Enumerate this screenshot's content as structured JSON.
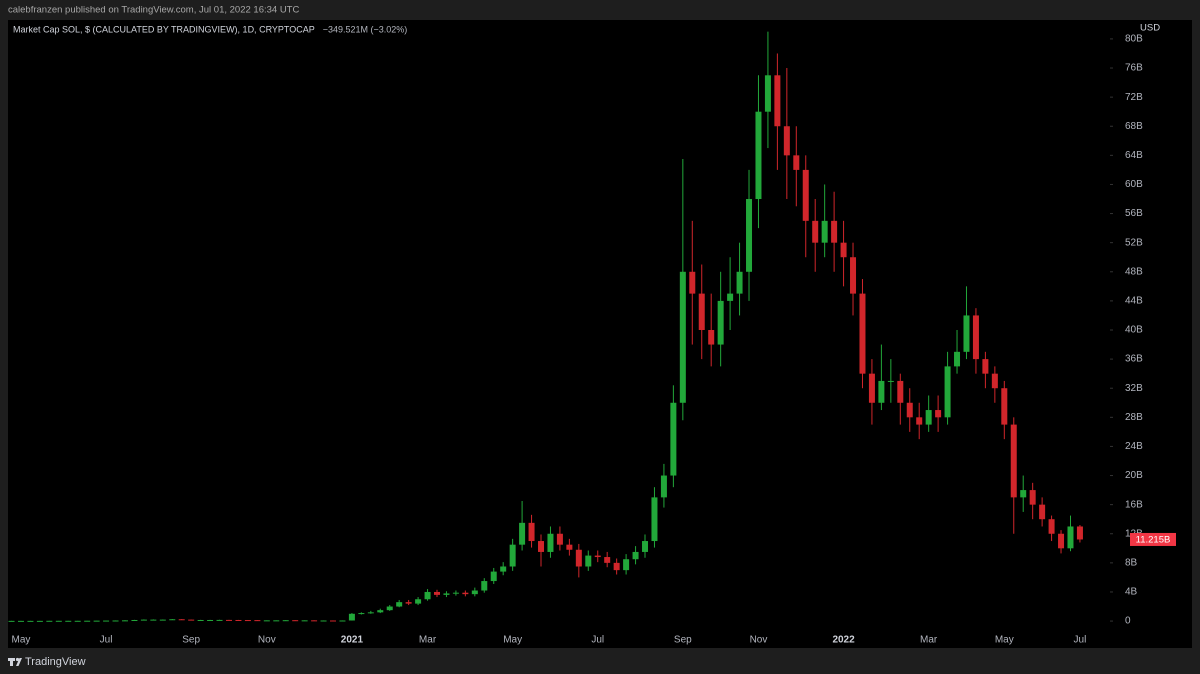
{
  "header": {
    "publisher": "calebfranzen published on TradingView.com, Jul 01, 2022 16:34 UTC"
  },
  "footer": {
    "brand": "TradingView"
  },
  "chart_data": {
    "type": "candlestick",
    "title": "Market Cap SOL, $ (CALCULATED BY TRADINGVIEW), 1D, CRYPTOCAP",
    "change": "−349.521M (−3.02%)",
    "currency": "USD",
    "last_label": "11.215B",
    "up_color": "#22a83a",
    "down_color": "#d1262b",
    "label_color": "#f23645",
    "categories": [
      null,
      "May",
      null,
      null,
      null,
      null,
      null,
      null,
      null,
      null,
      "Jul",
      null,
      null,
      null,
      null,
      null,
      null,
      null,
      null,
      "Sep",
      null,
      null,
      null,
      null,
      null,
      null,
      null,
      "Nov",
      null,
      null,
      null,
      null,
      null,
      null,
      null,
      null,
      "2021",
      null,
      null,
      null,
      null,
      null,
      null,
      null,
      "Mar",
      null,
      null,
      null,
      null,
      null,
      null,
      null,
      null,
      "May",
      null,
      null,
      null,
      null,
      null,
      null,
      null,
      null,
      "Jul",
      null,
      null,
      null,
      null,
      null,
      null,
      null,
      null,
      "Sep",
      null,
      null,
      null,
      null,
      null,
      null,
      null,
      "Nov",
      null,
      null,
      null,
      null,
      null,
      null,
      null,
      null,
      "2022",
      null,
      null,
      null,
      null,
      null,
      null,
      null,
      null,
      "Mar",
      null,
      null,
      null,
      null,
      null,
      null,
      null,
      "May",
      null,
      null,
      null,
      null,
      null,
      null,
      null,
      "Jul"
    ],
    "open": [
      0.03,
      0.03,
      0.03,
      0.03,
      0.03,
      0.04,
      0.04,
      0.04,
      0.04,
      0.05,
      0.06,
      0.07,
      0.08,
      0.1,
      0.15,
      0.2,
      0.2,
      0.2,
      0.25,
      0.2,
      0.15,
      0.15,
      0.15,
      0.16,
      0.15,
      0.14,
      0.13,
      0.1,
      0.1,
      0.1,
      0.12,
      0.1,
      0.1,
      0.08,
      0.08,
      0.07,
      0.08,
      1.0,
      1.1,
      1.2,
      1.5,
      2.0,
      2.6,
      2.4,
      3.0,
      4.0,
      3.6,
      3.8,
      3.9,
      3.7,
      4.2,
      5.5,
      6.8,
      7.5,
      10.5,
      13.5,
      11,
      9.5,
      12,
      10.5,
      9.8,
      7.5,
      9.0,
      8.8,
      8.0,
      7.0,
      8.5,
      9.5,
      11,
      17,
      20,
      30,
      48,
      45,
      40,
      38,
      44,
      45,
      48,
      58,
      70,
      75,
      68,
      64,
      62,
      55,
      52,
      55,
      52,
      50,
      45,
      34,
      30,
      33,
      33,
      30,
      28,
      27,
      29,
      28,
      35,
      37,
      42,
      36,
      34,
      32,
      27,
      17,
      18,
      16,
      14,
      12,
      10,
      13
    ],
    "high": [
      0.04,
      0.04,
      0.04,
      0.04,
      0.05,
      0.05,
      0.05,
      0.05,
      0.06,
      0.07,
      0.08,
      0.09,
      0.12,
      0.17,
      0.23,
      0.24,
      0.23,
      0.28,
      0.27,
      0.21,
      0.17,
      0.17,
      0.18,
      0.17,
      0.16,
      0.15,
      0.14,
      0.11,
      0.11,
      0.13,
      0.13,
      0.11,
      0.11,
      0.09,
      0.09,
      0.09,
      1.1,
      1.2,
      1.4,
      1.7,
      2.2,
      2.9,
      2.9,
      3.3,
      4.4,
      4.3,
      4.1,
      4.2,
      4.2,
      4.6,
      5.9,
      7.3,
      8.1,
      11.3,
      16.5,
      14.6,
      11.9,
      13.0,
      13.0,
      11.3,
      10.6,
      9.7,
      9.7,
      9.5,
      8.6,
      9.2,
      10.3,
      11.9,
      18.4,
      21.6,
      32.4,
      63.5,
      55,
      49,
      45,
      48,
      50,
      52,
      62,
      75,
      81,
      78,
      76,
      68,
      64,
      58,
      60,
      59,
      55,
      52,
      47,
      36,
      38,
      36,
      34,
      32,
      30,
      31,
      31,
      37,
      40,
      46,
      43,
      37,
      35,
      33,
      28,
      20,
      19,
      17,
      14.5,
      12.5,
      14.5,
      13.2
    ],
    "low": [
      0.02,
      0.02,
      0.02,
      0.02,
      0.03,
      0.03,
      0.03,
      0.03,
      0.04,
      0.05,
      0.05,
      0.06,
      0.07,
      0.09,
      0.14,
      0.18,
      0.18,
      0.19,
      0.18,
      0.13,
      0.13,
      0.13,
      0.14,
      0.13,
      0.12,
      0.12,
      0.09,
      0.09,
      0.09,
      0.09,
      0.09,
      0.09,
      0.07,
      0.07,
      0.06,
      0.06,
      0.07,
      0.9,
      1.0,
      1.1,
      1.4,
      1.9,
      2.2,
      2.2,
      2.8,
      3.3,
      3.3,
      3.5,
      3.4,
      3.4,
      3.9,
      5.1,
      6.3,
      6.9,
      9.7,
      10.1,
      7.5,
      8.7,
      9.7,
      9.0,
      6.0,
      6.9,
      8.1,
      7.4,
      6.4,
      6.4,
      7.8,
      8.7,
      10.1,
      15.6,
      18.4,
      27.6,
      38,
      36,
      35,
      35,
      40,
      42,
      44,
      54,
      65,
      62,
      58,
      57,
      50,
      48,
      50,
      48,
      46,
      42,
      32,
      27,
      29,
      30,
      27,
      26,
      25,
      26,
      26,
      27,
      34,
      36,
      34,
      32,
      30,
      25,
      12,
      15,
      14,
      13,
      11,
      9.3,
      9.6,
      10.8
    ],
    "close": [
      0.03,
      0.03,
      0.03,
      0.03,
      0.04,
      0.04,
      0.04,
      0.04,
      0.05,
      0.06,
      0.07,
      0.08,
      0.1,
      0.15,
      0.2,
      0.2,
      0.2,
      0.25,
      0.2,
      0.15,
      0.15,
      0.15,
      0.16,
      0.15,
      0.14,
      0.13,
      0.1,
      0.1,
      0.1,
      0.12,
      0.1,
      0.1,
      0.08,
      0.08,
      0.07,
      0.08,
      1.0,
      1.1,
      1.2,
      1.5,
      2.0,
      2.6,
      2.4,
      3.0,
      4.0,
      3.6,
      3.8,
      3.9,
      3.7,
      4.2,
      5.5,
      6.8,
      7.5,
      10.5,
      13.5,
      11,
      9.5,
      12,
      10.5,
      9.8,
      7.5,
      9.0,
      8.8,
      8.0,
      7.0,
      8.5,
      9.5,
      11,
      17,
      20,
      30,
      48,
      45,
      40,
      38,
      44,
      45,
      48,
      58,
      70,
      75,
      68,
      64,
      62,
      55,
      52,
      55,
      52,
      50,
      45,
      34,
      30,
      33,
      33,
      30,
      28,
      27,
      29,
      28,
      35,
      37,
      42,
      36,
      34,
      32,
      27,
      17,
      18,
      16,
      14,
      12,
      10,
      13,
      11.215
    ],
    "ylim": [
      -3.7,
      82.6
    ],
    "yticks": [
      0,
      {
        "value": 4,
        "label": "4B"
      },
      {
        "value": 8,
        "label": "8B"
      },
      {
        "value": 12,
        "label": "12B"
      },
      {
        "value": 16,
        "label": "16B"
      },
      {
        "value": 20,
        "label": "20B"
      },
      {
        "value": 24,
        "label": "24B"
      },
      {
        "value": 28,
        "label": "28B"
      },
      {
        "value": 32,
        "label": "32B"
      },
      {
        "value": 36,
        "label": "36B"
      },
      {
        "value": 40,
        "label": "40B"
      },
      {
        "value": 44,
        "label": "44B"
      },
      {
        "value": 48,
        "label": "48B"
      },
      {
        "value": 52,
        "label": "52B"
      },
      {
        "value": 56,
        "label": "56B"
      },
      {
        "value": 60,
        "label": "60B"
      },
      {
        "value": 64,
        "label": "64B"
      },
      {
        "value": 68,
        "label": "68B"
      },
      {
        "value": 72,
        "label": "72B"
      },
      {
        "value": 76,
        "label": "76B"
      },
      {
        "value": 80,
        "label": "80B"
      }
    ],
    "grid": false
  }
}
